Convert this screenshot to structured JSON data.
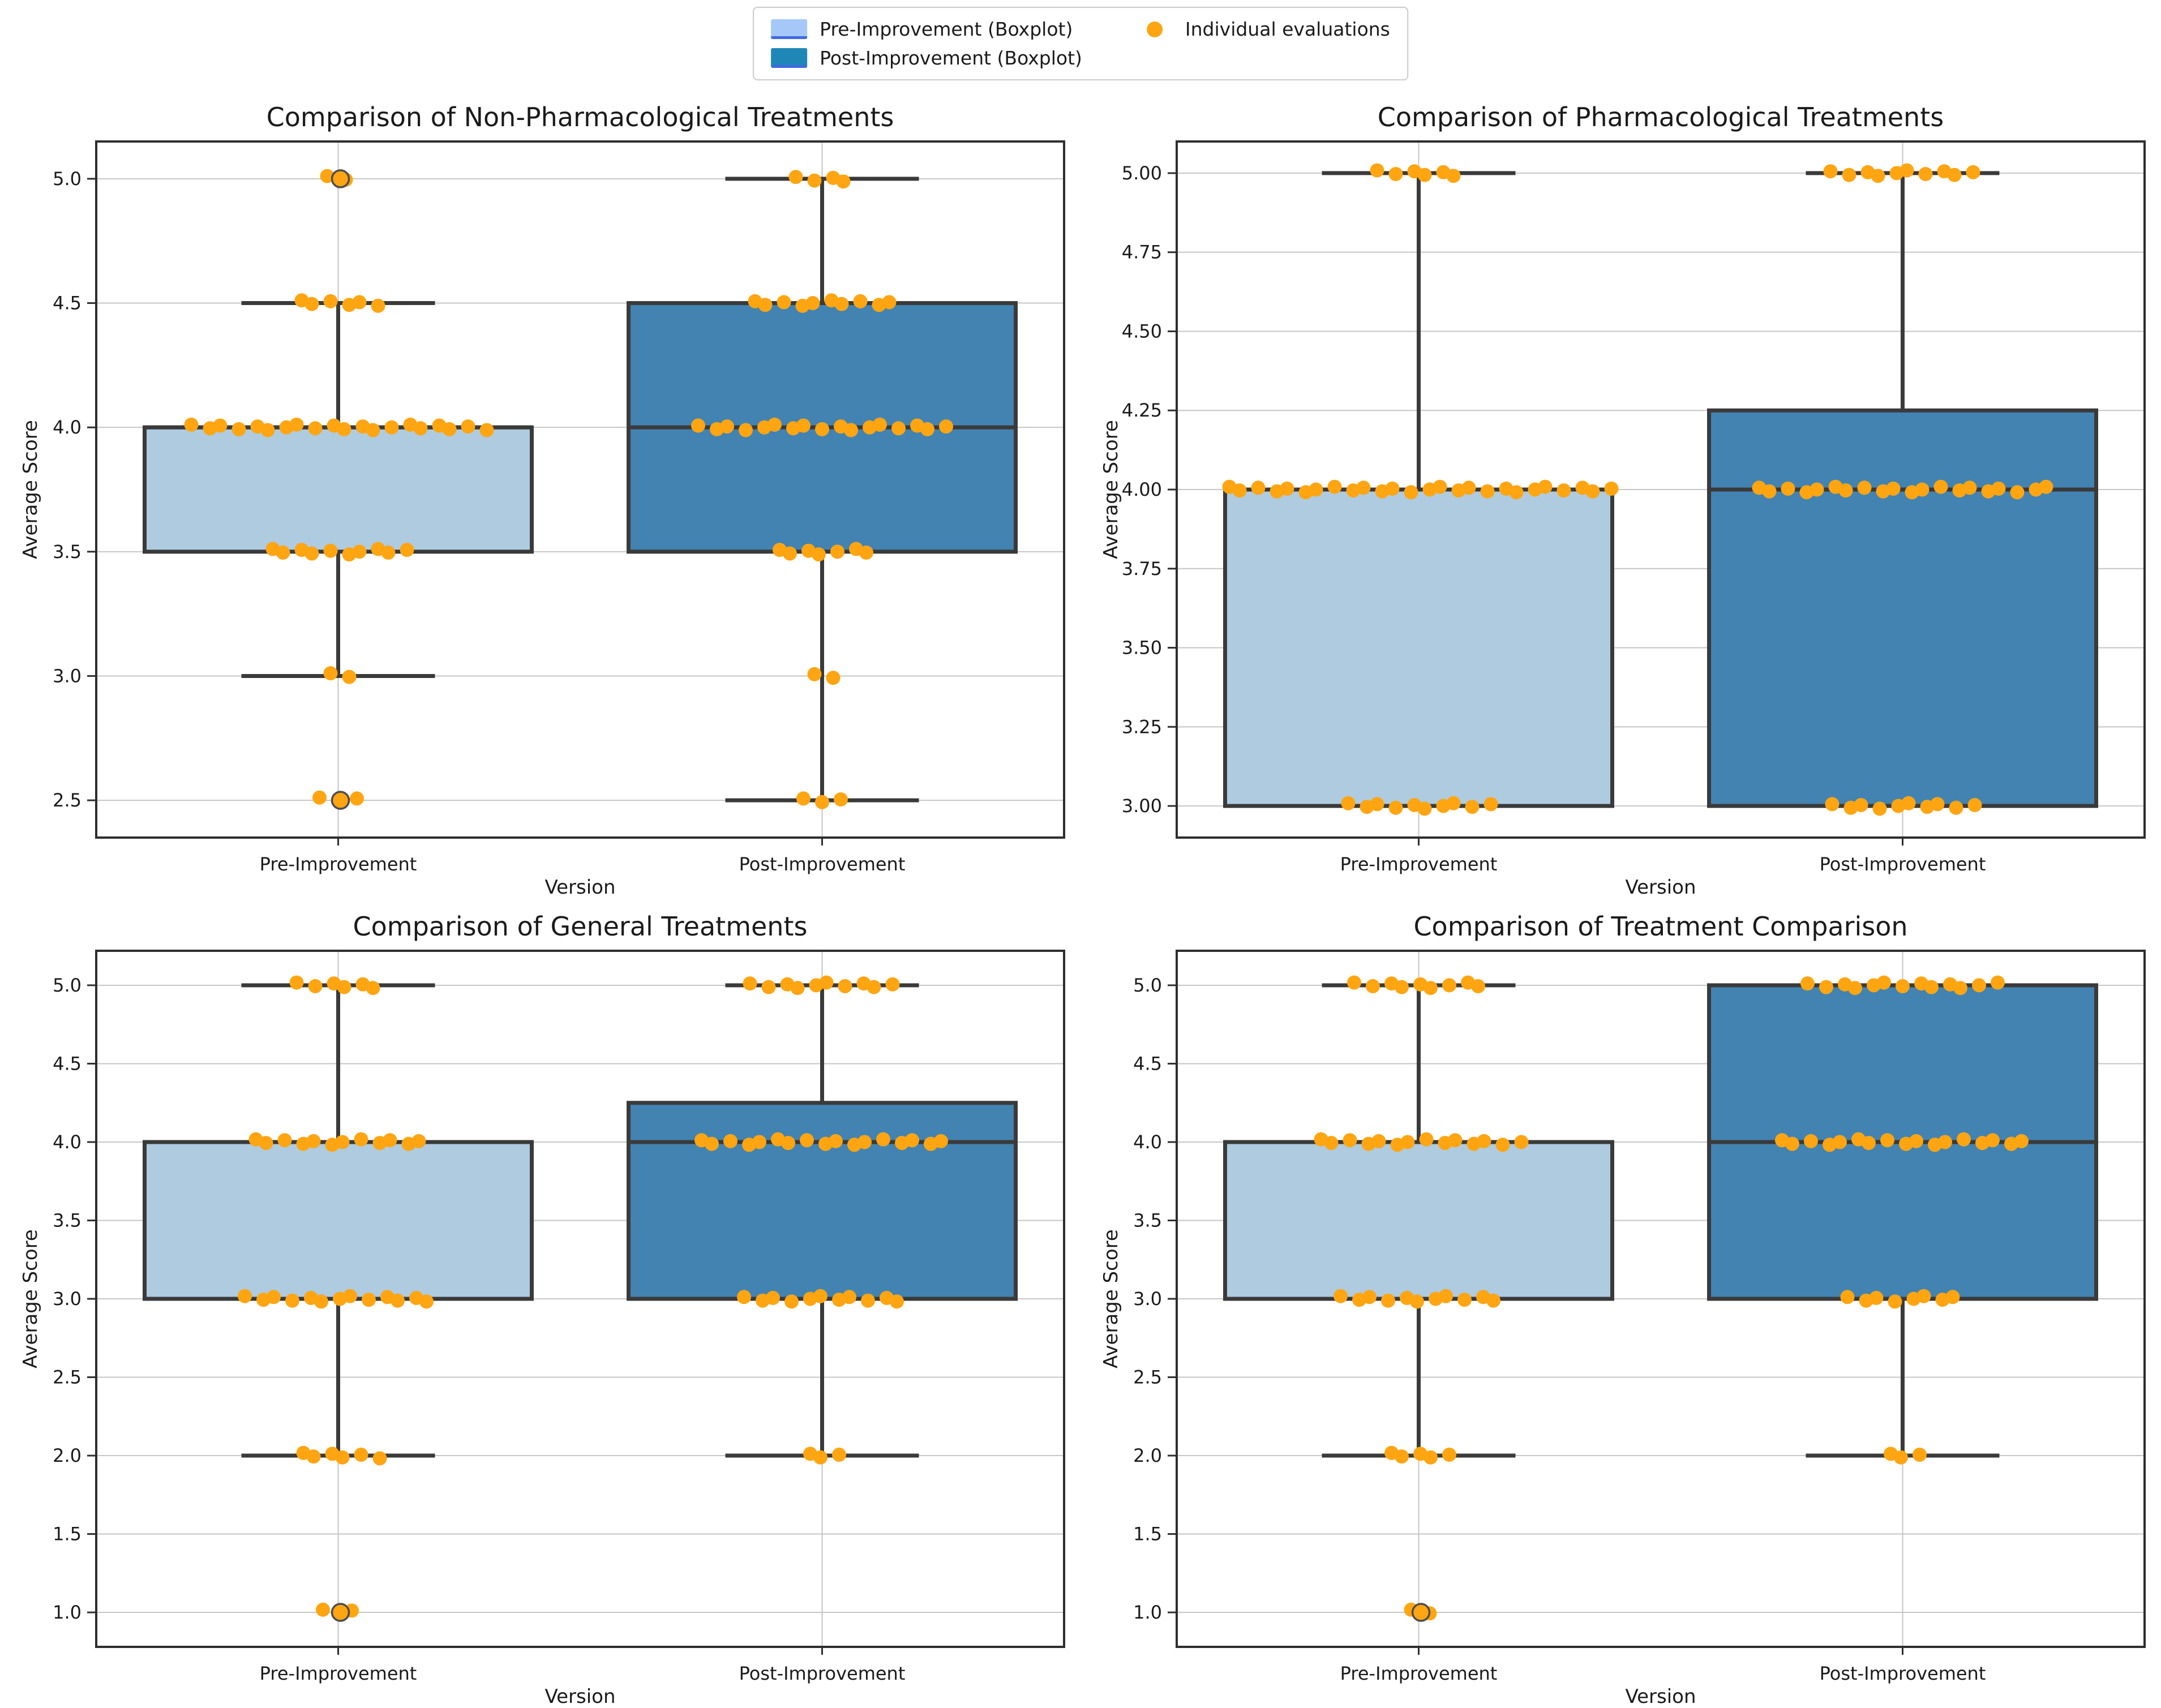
{
  "legend": {
    "pre_label": "Pre-Improvement (Boxplot)",
    "post_label": "Post-Improvement (Boxplot)",
    "points_label": "Individual evaluations"
  },
  "style": {
    "pre_fill": "#AECBE0",
    "post_fill": "#4283B2",
    "legend_pre_fill": "#A6C8F8",
    "legend_post_fill": "#1E87B8",
    "legend_underline": "#4169E1",
    "point_color": "#FFA512",
    "outlier_edge": "#4D4D4D",
    "box_edge": "#3A3A3A",
    "grid_color": "#C6C6C6",
    "spine_color": "#2E2E2E",
    "text_color": "#1A1A1A"
  },
  "chart_data": [
    {
      "type": "boxplot",
      "title": "Comparison of Non-Pharmacological Treatments",
      "xlabel": "Version",
      "ylabel": "Average Score",
      "categories": [
        "Pre-Improvement",
        "Post-Improvement"
      ],
      "legend_position": "top-center-above-figure",
      "grid": true,
      "ylim": [
        2.35,
        5.15
      ],
      "ytick_values": [
        2.5,
        3.0,
        3.5,
        4.0,
        4.5,
        5.0
      ],
      "ytick_labels": [
        "2.5",
        "3.0",
        "3.5",
        "4.0",
        "4.5",
        "5.0"
      ],
      "series": [
        {
          "name": "Pre-Improvement",
          "role": "pre",
          "box": {
            "whislo": 3.0,
            "q1": 3.5,
            "median": 4.0,
            "q3": 4.0,
            "whishi": 4.5
          },
          "fliers": [
            5.0,
            2.5
          ],
          "points": [
            {
              "value": 5.0,
              "count": 2
            },
            {
              "value": 4.5,
              "count": 6
            },
            {
              "value": 4.0,
              "count": 20
            },
            {
              "value": 3.5,
              "count": 10
            },
            {
              "value": 3.0,
              "count": 2
            },
            {
              "value": 2.5,
              "count": 3
            }
          ]
        },
        {
          "name": "Post-Improvement",
          "role": "post",
          "box": {
            "whislo": 2.5,
            "q1": 3.5,
            "median": 4.0,
            "q3": 4.5,
            "whishi": 5.0
          },
          "fliers": [],
          "points": [
            {
              "value": 5.0,
              "count": 4
            },
            {
              "value": 4.5,
              "count": 10
            },
            {
              "value": 4.0,
              "count": 17
            },
            {
              "value": 3.5,
              "count": 7
            },
            {
              "value": 3.0,
              "count": 2
            },
            {
              "value": 2.5,
              "count": 3
            }
          ]
        }
      ]
    },
    {
      "type": "boxplot",
      "title": "Comparison of Pharmacological Treatments",
      "xlabel": "Version",
      "ylabel": "Average Score",
      "categories": [
        "Pre-Improvement",
        "Post-Improvement"
      ],
      "grid": true,
      "ylim": [
        2.9,
        5.1
      ],
      "ytick_values": [
        3.0,
        3.25,
        3.5,
        3.75,
        4.0,
        4.25,
        4.5,
        4.75,
        5.0
      ],
      "ytick_labels": [
        "3.00",
        "3.25",
        "3.50",
        "3.75",
        "4.00",
        "4.25",
        "4.50",
        "4.75",
        "5.00"
      ],
      "series": [
        {
          "name": "Pre-Improvement",
          "role": "pre",
          "box": {
            "whislo": 3.0,
            "q1": 3.0,
            "median": 4.0,
            "q3": 4.0,
            "whishi": 5.0
          },
          "fliers": [],
          "points": [
            {
              "value": 5.0,
              "count": 6
            },
            {
              "value": 4.0,
              "count": 26
            },
            {
              "value": 3.0,
              "count": 10
            }
          ]
        },
        {
          "name": "Post-Improvement",
          "role": "post",
          "box": {
            "whislo": 3.0,
            "q1": 3.0,
            "median": 4.0,
            "q3": 4.25,
            "whishi": 5.0
          },
          "fliers": [],
          "points": [
            {
              "value": 5.0,
              "count": 10
            },
            {
              "value": 4.0,
              "count": 20
            },
            {
              "value": 3.0,
              "count": 10
            }
          ]
        }
      ]
    },
    {
      "type": "boxplot",
      "title": "Comparison of General Treatments",
      "xlabel": "Version",
      "ylabel": "Average Score",
      "categories": [
        "Pre-Improvement",
        "Post-Improvement"
      ],
      "grid": true,
      "ylim": [
        0.78,
        5.22
      ],
      "ytick_values": [
        1.0,
        1.5,
        2.0,
        2.5,
        3.0,
        3.5,
        4.0,
        4.5,
        5.0
      ],
      "ytick_labels": [
        "1.0",
        "1.5",
        "2.0",
        "2.5",
        "3.0",
        "3.5",
        "4.0",
        "4.5",
        "5.0"
      ],
      "series": [
        {
          "name": "Pre-Improvement",
          "role": "pre",
          "box": {
            "whislo": 2.0,
            "q1": 3.0,
            "median": 4.0,
            "q3": 4.0,
            "whishi": 5.0
          },
          "fliers": [
            1.0
          ],
          "points": [
            {
              "value": 5.0,
              "count": 6
            },
            {
              "value": 4.0,
              "count": 12
            },
            {
              "value": 3.0,
              "count": 13
            },
            {
              "value": 2.0,
              "count": 6
            },
            {
              "value": 1.0,
              "count": 3
            }
          ]
        },
        {
          "name": "Post-Improvement",
          "role": "post",
          "box": {
            "whislo": 2.0,
            "q1": 3.0,
            "median": 4.0,
            "q3": 4.25,
            "whishi": 5.0
          },
          "fliers": [],
          "points": [
            {
              "value": 5.0,
              "count": 10
            },
            {
              "value": 4.0,
              "count": 17
            },
            {
              "value": 3.0,
              "count": 11
            },
            {
              "value": 2.0,
              "count": 3
            }
          ]
        }
      ]
    },
    {
      "type": "boxplot",
      "title": "Comparison of Treatment Comparison",
      "xlabel": "Version",
      "ylabel": "Average Score",
      "categories": [
        "Pre-Improvement",
        "Post-Improvement"
      ],
      "grid": true,
      "ylim": [
        0.78,
        5.22
      ],
      "ytick_values": [
        1.0,
        1.5,
        2.0,
        2.5,
        3.0,
        3.5,
        4.0,
        4.5,
        5.0
      ],
      "ytick_labels": [
        "1.0",
        "1.5",
        "2.0",
        "2.5",
        "3.0",
        "3.5",
        "4.0",
        "4.5",
        "5.0"
      ],
      "series": [
        {
          "name": "Pre-Improvement",
          "role": "pre",
          "box": {
            "whislo": 2.0,
            "q1": 3.0,
            "median": 4.0,
            "q3": 4.0,
            "whishi": 5.0
          },
          "fliers": [
            1.0
          ],
          "points": [
            {
              "value": 5.0,
              "count": 9
            },
            {
              "value": 4.0,
              "count": 14
            },
            {
              "value": 3.0,
              "count": 11
            },
            {
              "value": 2.0,
              "count": 5
            },
            {
              "value": 1.0,
              "count": 2
            }
          ]
        },
        {
          "name": "Post-Improvement",
          "role": "post",
          "box": {
            "whislo": 2.0,
            "q1": 3.0,
            "median": 4.0,
            "q3": 5.0,
            "whishi": 5.0
          },
          "fliers": [],
          "points": [
            {
              "value": 5.0,
              "count": 13
            },
            {
              "value": 4.0,
              "count": 17
            },
            {
              "value": 3.0,
              "count": 8
            },
            {
              "value": 2.0,
              "count": 3
            }
          ]
        }
      ]
    }
  ]
}
